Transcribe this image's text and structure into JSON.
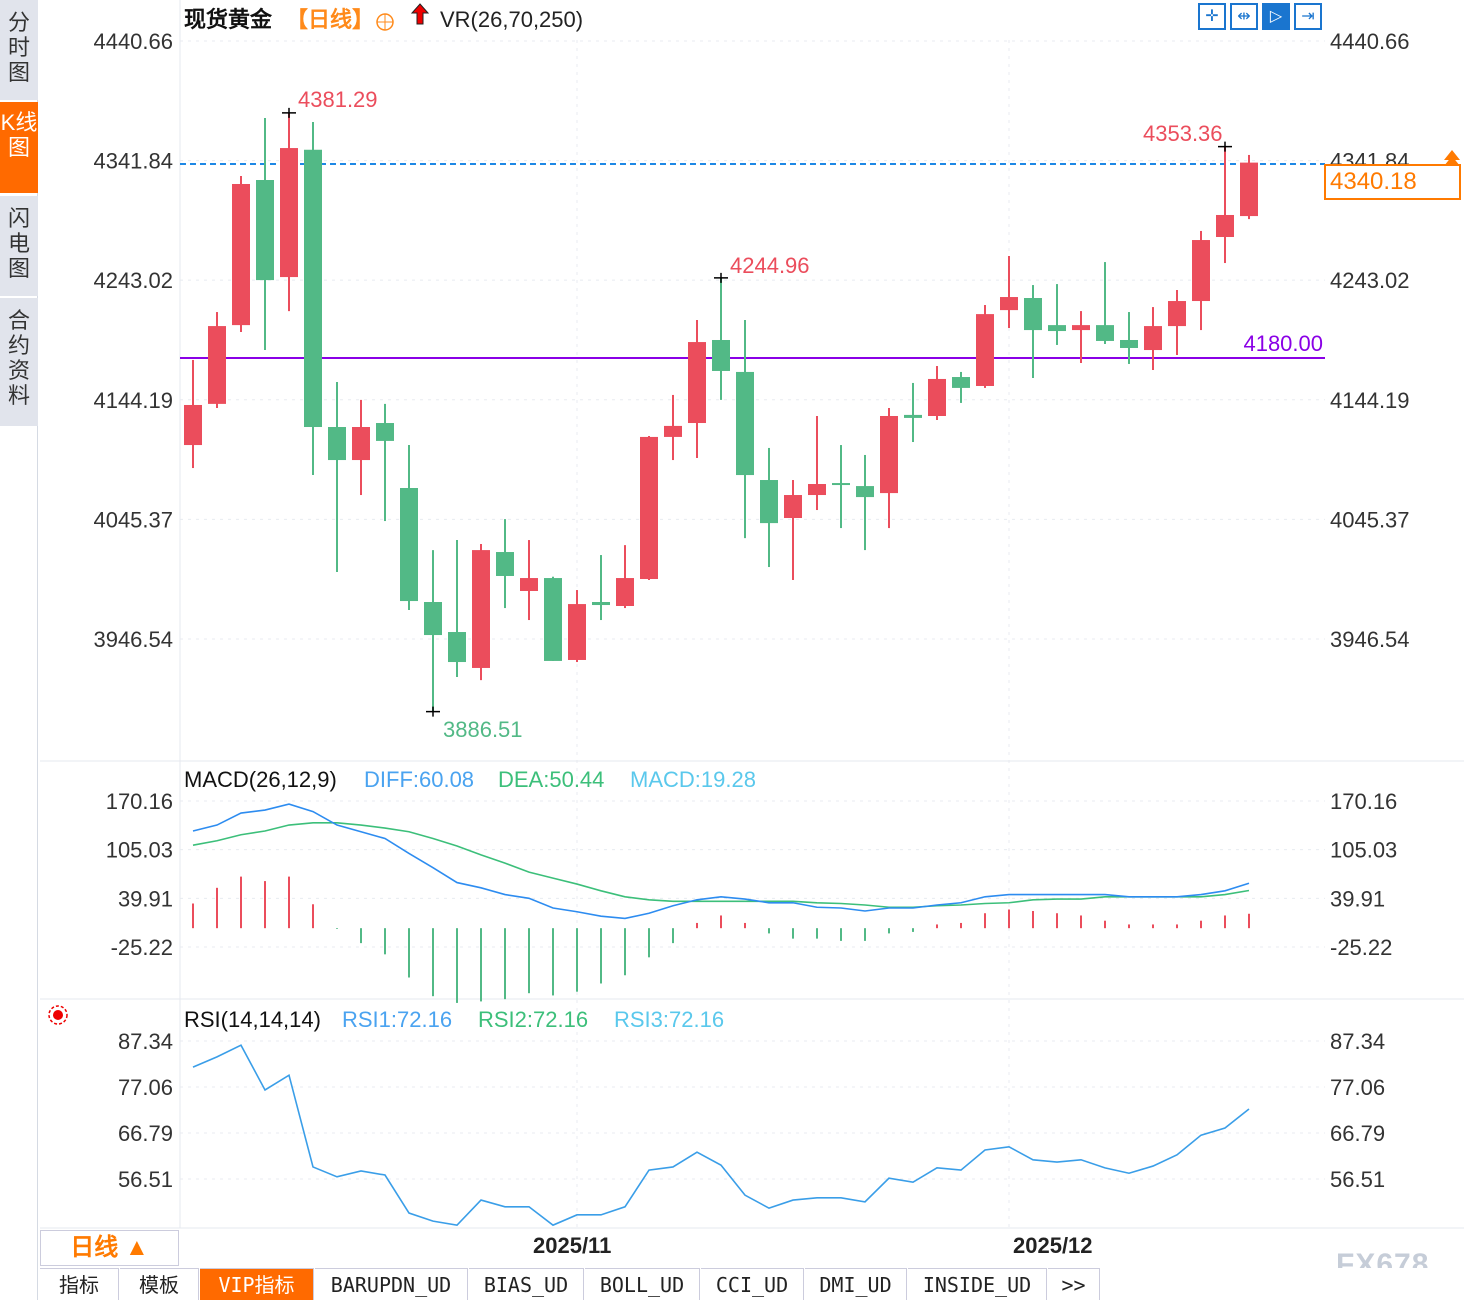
{
  "sidebar": {
    "tabs": [
      {
        "label": "分时图"
      },
      {
        "label": "K线图",
        "active": true
      },
      {
        "label": "闪电图"
      },
      {
        "label": "合约资料"
      }
    ]
  },
  "header": {
    "instrument": "现货黄金",
    "period": "【日线】",
    "indicator": "VR(26,70,250)"
  },
  "toolbar": {
    "icons": [
      "crosshair-icon",
      "zoom-range-icon",
      "move-right-icon",
      "jump-to-end-icon"
    ]
  },
  "colors": {
    "up": "#eb4d5c",
    "down": "#52b986",
    "diff": "#2d8cf0",
    "dea": "#3cbf7a",
    "accent": "#ff7a00",
    "hline": "#8a00e6",
    "last": "#1e88e5"
  },
  "main": {
    "y_ticks": [
      "4440.66",
      "4341.84",
      "4243.02",
      "4144.19",
      "4045.37",
      "3946.54"
    ],
    "high_label": "4381.29",
    "low_label": "3886.51",
    "mid_label": "4244.96",
    "recent_high_label": "4353.36",
    "last_price": "4340.18",
    "hline_label": "4180.00"
  },
  "macd": {
    "title": "MACD(26,12,9)",
    "diff": "DIFF:60.08",
    "dea": "DEA:50.44",
    "macd": "MACD:19.28",
    "y_ticks": [
      "170.16",
      "105.03",
      "39.91",
      "-25.22"
    ]
  },
  "rsi": {
    "title": "RSI(14,14,14)",
    "rsi1": "RSI1:72.16",
    "rsi2": "RSI2:72.16",
    "rsi3": "RSI3:72.16",
    "y_ticks": [
      "87.34",
      "77.06",
      "66.79",
      "56.51"
    ]
  },
  "x_axis": {
    "labels": [
      "2025/11",
      "2025/12"
    ]
  },
  "period_selector": {
    "label": "日线 ▲"
  },
  "bottom_tabs": [
    {
      "label": "指标"
    },
    {
      "label": "模板"
    },
    {
      "label": "VIP指标",
      "active": true
    },
    {
      "label": "BARUPDN_UD"
    },
    {
      "label": "BIAS_UD"
    },
    {
      "label": "BOLL_UD"
    },
    {
      "label": "CCI_UD"
    },
    {
      "label": "DMI_UD"
    },
    {
      "label": "INSIDE_UD"
    },
    {
      "label": ">>"
    }
  ],
  "watermark": "FX678",
  "chart_data": [
    {
      "type": "candlestick",
      "title": "现货黄金 日线",
      "ylim": [
        3886.51,
        4440.66
      ],
      "ohlc": [
        [
          4106.8,
          4177.1,
          4087.8,
          4139.9
        ],
        [
          4140.8,
          4216.7,
          4137.4,
          4205.1
        ],
        [
          4205.9,
          4329.1,
          4200.2,
          4322.5
        ],
        [
          4325.8,
          4377.0,
          4185.3,
          4243.1
        ],
        [
          4245.6,
          4381.29,
          4217.5,
          4352.2
        ],
        [
          4350.8,
          4373.7,
          4082.0,
          4121.7
        ],
        [
          4121.7,
          4158.9,
          4001.9,
          4094.4
        ],
        [
          4094.4,
          4144.1,
          4065.5,
          4121.7
        ],
        [
          4125.0,
          4140.8,
          4044.0,
          4110.2
        ],
        [
          4071.3,
          4106.8,
          3970.5,
          3977.9
        ],
        [
          3977.1,
          4020.0,
          3886.51,
          3949.8
        ],
        [
          3952.3,
          4028.3,
          3915.1,
          3927.5
        ],
        [
          3922.6,
          4025.0,
          3912.6,
          4020.0
        ],
        [
          4018.4,
          4045.6,
          3972.1,
          3998.6
        ],
        [
          3986.2,
          4028.3,
          3962.2,
          3996.9
        ],
        [
          3996.9,
          3998.0,
          3928.4,
          3928.4
        ],
        [
          3929.2,
          3987.0,
          3927.5,
          3975.4
        ],
        [
          3977.1,
          4015.9,
          3962.2,
          3974.6
        ],
        [
          3973.8,
          4024.1,
          3972.1,
          3996.9
        ],
        [
          3996.1,
          4114.3,
          3995.3,
          4113.5
        ],
        [
          4113.5,
          4148.2,
          4094.4,
          4122.6
        ],
        [
          4125.0,
          4210.1,
          4096.1,
          4191.9
        ],
        [
          4193.6,
          4244.96,
          4144.1,
          4168.0
        ],
        [
          4167.2,
          4210.1,
          4029.9,
          4082.0
        ],
        [
          4077.9,
          4104.4,
          4006.0,
          4042.3
        ],
        [
          4046.5,
          4077.9,
          3995.3,
          4065.5
        ],
        [
          4065.5,
          4130.8,
          4053.1,
          4074.6
        ],
        [
          4075.4,
          4106.8,
          4038.2,
          4073.8
        ],
        [
          4072.9,
          4098.6,
          4020.0,
          4063.8
        ],
        [
          4067.1,
          4137.4,
          4038.2,
          4130.8
        ],
        [
          4131.7,
          4158.1,
          4109.3,
          4129.2
        ],
        [
          4130.8,
          4172.1,
          4127.5,
          4161.4
        ],
        [
          4163.0,
          4167.2,
          4141.6,
          4154.0
        ],
        [
          4155.6,
          4222.5,
          4154.0,
          4215.0
        ],
        [
          4218.3,
          4263.0,
          4203.5,
          4229.1
        ],
        [
          4228.3,
          4239.0,
          4162.2,
          4201.8
        ],
        [
          4205.9,
          4239.8,
          4189.5,
          4201.0
        ],
        [
          4201.8,
          4217.5,
          4174.6,
          4205.9
        ],
        [
          4205.9,
          4258.0,
          4190.3,
          4192.8
        ],
        [
          4193.6,
          4216.7,
          4173.8,
          4187.0
        ],
        [
          4185.3,
          4220.8,
          4168.8,
          4205.1
        ],
        [
          4205.1,
          4234.9,
          4181.2,
          4225.8
        ],
        [
          4225.8,
          4283.7,
          4201.8,
          4276.2
        ],
        [
          4278.7,
          4353.36,
          4257.2,
          4296.9
        ],
        [
          4296.0,
          4346.5,
          4293.5,
          4340.18
        ]
      ],
      "hline": 4180.0,
      "last": 4340.18
    },
    {
      "type": "line+bar",
      "title": "MACD(26,12,9)",
      "ylim": [
        -25.22,
        170.16
      ],
      "diff": [
        130,
        138,
        154,
        158,
        166,
        156,
        138,
        129,
        120,
        100,
        81,
        61,
        54,
        45,
        40,
        27,
        22,
        16,
        13,
        20,
        30,
        38,
        42,
        39,
        34,
        34,
        28,
        27,
        23,
        27,
        27,
        31,
        34,
        42,
        45,
        45,
        45,
        45,
        45,
        42,
        42,
        42,
        45,
        50,
        60.08
      ],
      "dea": [
        111,
        117,
        125,
        130,
        138,
        141,
        141,
        138,
        134,
        129,
        120,
        110,
        98,
        87,
        75,
        67,
        59,
        50,
        42,
        38,
        36,
        36,
        36,
        36,
        36,
        36,
        34,
        33,
        31,
        28,
        28,
        30,
        31,
        33,
        34,
        38,
        39,
        39,
        42,
        42,
        42,
        42,
        42,
        45,
        50.44
      ],
      "macd": [
        33,
        54,
        69,
        63,
        69,
        32,
        -1,
        -20,
        -35,
        -66,
        -91,
        -100,
        -98,
        -95,
        -87,
        -90,
        -85,
        -74,
        -63,
        -39,
        -20,
        7,
        17,
        7,
        -7,
        -14,
        -14,
        -17,
        -17,
        -7,
        -5,
        5,
        7,
        20,
        25,
        23,
        20,
        17,
        10,
        5,
        5,
        5,
        10,
        17,
        19.28
      ]
    },
    {
      "type": "line",
      "title": "RSI(14,14,14)",
      "ylim": [
        56.51,
        87.34
      ],
      "rsi": [
        81.5,
        83.8,
        86.4,
        76.4,
        79.7,
        59.2,
        57.0,
        58.3,
        57.4,
        48.9,
        47.1,
        46.2,
        51.8,
        50.3,
        50.3,
        46.2,
        48.5,
        48.5,
        50.3,
        58.5,
        59.2,
        62.5,
        59.6,
        52.9,
        50.0,
        51.8,
        52.3,
        52.3,
        51.4,
        56.7,
        55.8,
        59.0,
        58.5,
        63.0,
        63.7,
        60.8,
        60.3,
        60.8,
        59.0,
        57.8,
        59.4,
        61.9,
        66.3,
        67.9,
        72.16
      ]
    }
  ]
}
